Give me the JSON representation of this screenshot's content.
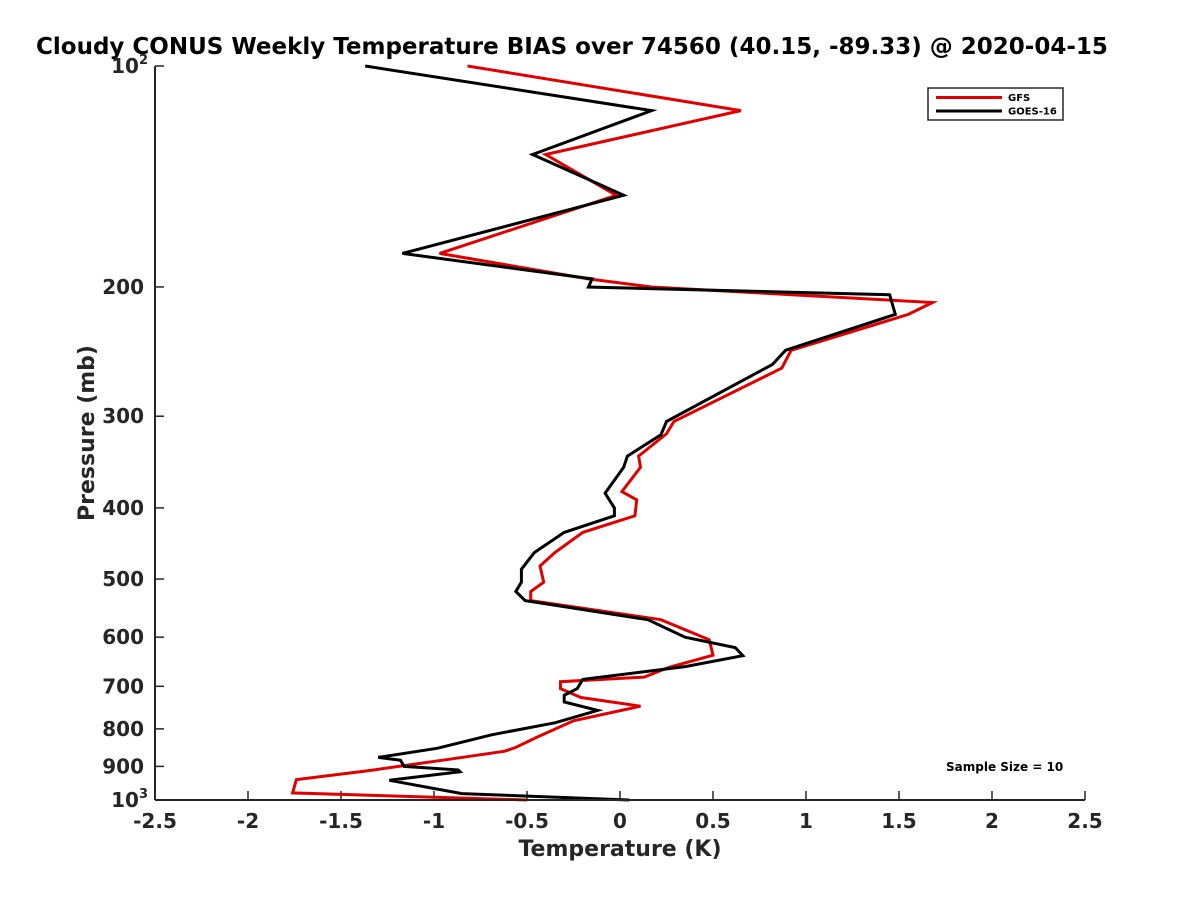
{
  "chart_data": {
    "type": "line",
    "title": "Cloudy CONUS Weekly Temperature BIAS over 74560 (40.15, -89.33) @ 2020-04-15",
    "xlabel": "Temperature (K)",
    "ylabel": "Pressure (mb)",
    "xlim": [
      -2.5,
      2.5
    ],
    "ylim": [
      100,
      1000
    ],
    "y_scale": "log",
    "y_reversed": true,
    "grid": false,
    "legend_position": "top-right",
    "x_ticks": [
      "-2.5",
      "-2",
      "-1.5",
      "-1",
      "-0.5",
      "0",
      "0.5",
      "1",
      "1.5",
      "2",
      "2.5"
    ],
    "y_ticks": [
      {
        "value": 100,
        "base": "10",
        "exp": "2"
      },
      {
        "value": 200,
        "label": "200"
      },
      {
        "value": 300,
        "label": "300"
      },
      {
        "value": 400,
        "label": "400"
      },
      {
        "value": 500,
        "label": "500"
      },
      {
        "value": 600,
        "label": "600"
      },
      {
        "value": 700,
        "label": "700"
      },
      {
        "value": 800,
        "label": "800"
      },
      {
        "value": 900,
        "label": "900"
      },
      {
        "value": 1000,
        "base": "10",
        "exp": "3"
      }
    ],
    "series": [
      {
        "name": "GFS",
        "color": "#e00000",
        "x": [
          -0.82,
          0.65,
          -0.4,
          -0.02,
          -0.97,
          -0.17,
          0.17,
          1.68,
          1.55,
          0.92,
          0.87,
          0.29,
          0.25,
          0.1,
          0.11,
          0.01,
          0.09,
          0.08,
          -0.2,
          -0.35,
          -0.43,
          -0.41,
          -0.48,
          -0.48,
          0.22,
          0.48,
          0.5,
          0.26,
          0.13,
          -0.32,
          -0.32,
          -0.21,
          0.11,
          -0.25,
          -0.45,
          -0.56,
          -0.62,
          -0.92,
          -1.35,
          -1.74,
          -1.76,
          -0.5
        ],
        "y": [
          100,
          115,
          132,
          150,
          180,
          195,
          200,
          210,
          218,
          244,
          258,
          305,
          317,
          340,
          352,
          380,
          390,
          410,
          432,
          460,
          480,
          505,
          520,
          535,
          568,
          605,
          635,
          660,
          680,
          690,
          705,
          725,
          745,
          780,
          822,
          848,
          858,
          880,
          912,
          938,
          978,
          1000
        ]
      },
      {
        "name": "GOES-16",
        "color": "#000000",
        "x": [
          -1.37,
          0.17,
          -0.47,
          0.02,
          -1.17,
          -0.15,
          -0.17,
          1.45,
          1.48,
          0.89,
          0.82,
          0.25,
          0.22,
          0.04,
          0.02,
          -0.08,
          -0.03,
          -0.03,
          -0.3,
          -0.46,
          -0.53,
          -0.53,
          -0.56,
          -0.51,
          0.15,
          0.35,
          0.62,
          0.66,
          0.35,
          -0.2,
          -0.23,
          -0.3,
          -0.3,
          -0.12,
          -0.35,
          -0.69,
          -0.98,
          -1.3,
          -1.18,
          -1.16,
          -0.87,
          -0.86,
          -1.24,
          -0.85,
          0.05
        ],
        "y": [
          100,
          115,
          132,
          150,
          180,
          195,
          200,
          205,
          218,
          244,
          255,
          305,
          318,
          340,
          352,
          382,
          400,
          410,
          432,
          460,
          485,
          505,
          520,
          535,
          568,
          600,
          620,
          636,
          658,
          685,
          705,
          720,
          735,
          755,
          785,
          815,
          850,
          875,
          883,
          900,
          910,
          915,
          940,
          980,
          1000
        ]
      }
    ],
    "annotation": "Sample Size = 10"
  }
}
